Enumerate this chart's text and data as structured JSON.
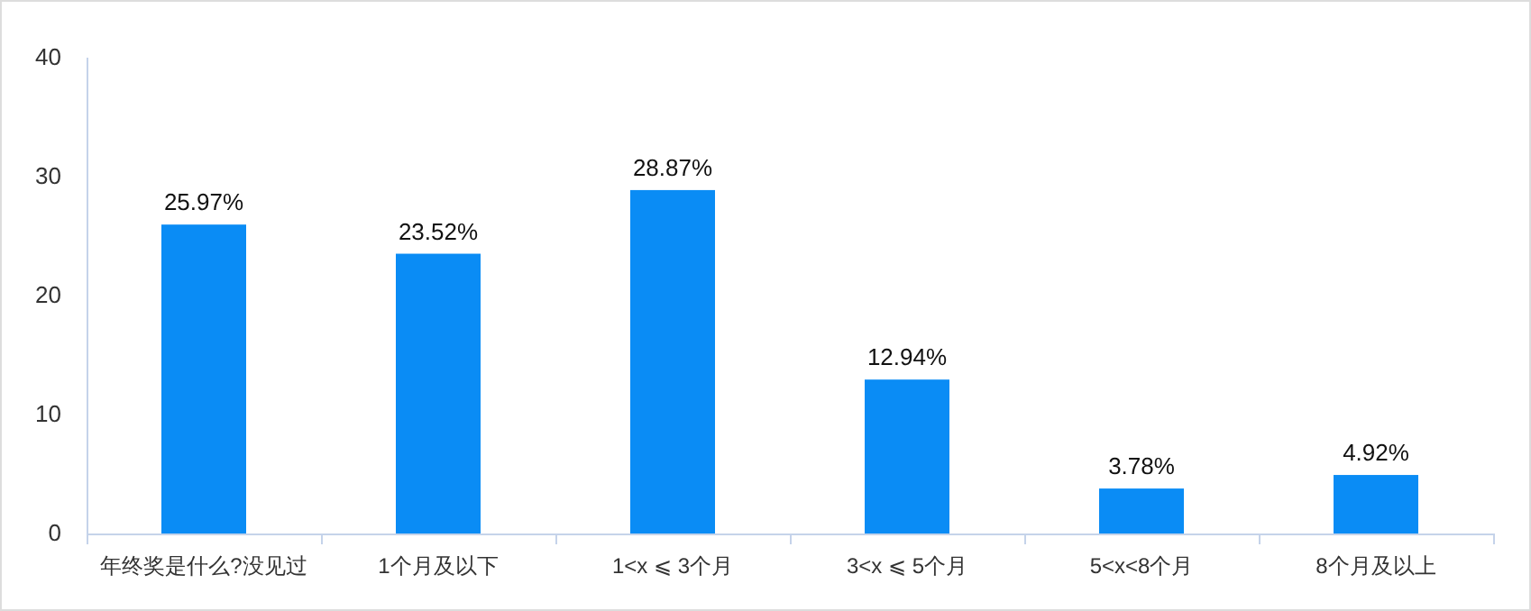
{
  "chart_data": {
    "type": "bar",
    "categories": [
      "年终奖是什么?没见过",
      "1个月及以下",
      "1<x ⩽ 3个月",
      "3<x ⩽ 5个月",
      "5<x<8个月",
      "8个月及以上"
    ],
    "values": [
      25.97,
      23.52,
      28.87,
      12.94,
      3.78,
      4.92
    ],
    "value_labels": [
      "25.97%",
      "23.52%",
      "28.87%",
      "12.94%",
      "3.78%",
      "4.92%"
    ],
    "color": "#0a8cf5",
    "ylim": [
      0,
      40
    ],
    "yticks": [
      0,
      10,
      20,
      30,
      40
    ]
  }
}
